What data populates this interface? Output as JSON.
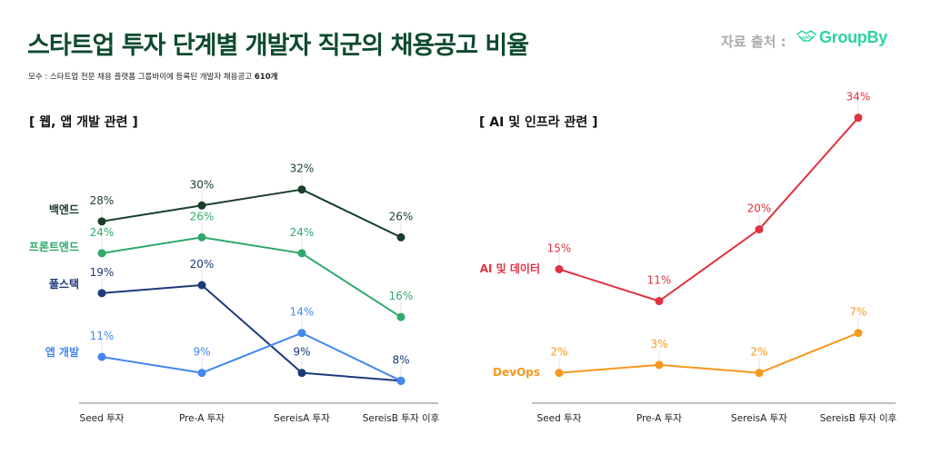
{
  "header": {
    "title": "스타트업 투자 단계별 개발자 직군의 채용공고 비율",
    "subtitle_prefix": "모수 : 스타트업 전문 채용 플랫폼 그룹바이에 등록된 개발자 채용공고 ",
    "subtitle_count": "610개",
    "source_label": "자료 출처 :",
    "source_logo_text": "GroupBy",
    "source_logo_icon": "handshake-icon",
    "title_color": "#0e4a2f",
    "logo_color": "#2cd3a3"
  },
  "chart_data": [
    {
      "type": "line",
      "title": "[ 웹, 앱 개발 관련 ]",
      "xlabel": "",
      "ylabel": "",
      "categories": [
        "Seed 투자",
        "Pre-A 투자",
        "SereisA 투자",
        "SereisB 투자 이후"
      ],
      "ylim": [
        5.2,
        36
      ],
      "grid": false,
      "legend": "inline-left",
      "series": [
        {
          "name": "백엔드",
          "color": "#1b3d2b",
          "values": [
            28,
            30,
            32,
            26
          ],
          "labels": [
            "28%",
            "30%",
            "32%",
            "26%"
          ]
        },
        {
          "name": "프론트엔드",
          "color": "#2ea96b",
          "values": [
            24,
            26,
            24,
            16
          ],
          "labels": [
            "24%",
            "26%",
            "24%",
            "16%"
          ]
        },
        {
          "name": "풀스택",
          "color": "#1c3a78",
          "values": [
            19,
            20,
            9,
            8
          ],
          "labels": [
            "19%",
            "20%",
            "9%",
            "8%"
          ]
        },
        {
          "name": "앱 개발",
          "color": "#4387ef",
          "values": [
            11,
            9,
            14,
            8
          ],
          "labels": [
            "11%",
            "9%",
            "14%",
            ""
          ]
        }
      ]
    },
    {
      "type": "line",
      "title": "[ AI 및 인프라 관련 ]",
      "xlabel": "",
      "ylabel": "",
      "categories": [
        "Seed 투자",
        "Pre-A 투자",
        "SereisA 투자",
        "SereisB 투자 이후"
      ],
      "ylim": [
        -1.8,
        36.6
      ],
      "grid": false,
      "legend": "inline-left",
      "series": [
        {
          "name": "AI 및 데이터",
          "color": "#e0323f",
          "values": [
            15,
            11,
            20,
            34
          ],
          "labels": [
            "15%",
            "11%",
            "20%",
            "34%"
          ]
        },
        {
          "name": "DevOps",
          "color": "#f5981d",
          "values": [
            2,
            3,
            2,
            7
          ],
          "labels": [
            "2%",
            "3%",
            "2%",
            "7%"
          ]
        }
      ]
    }
  ]
}
